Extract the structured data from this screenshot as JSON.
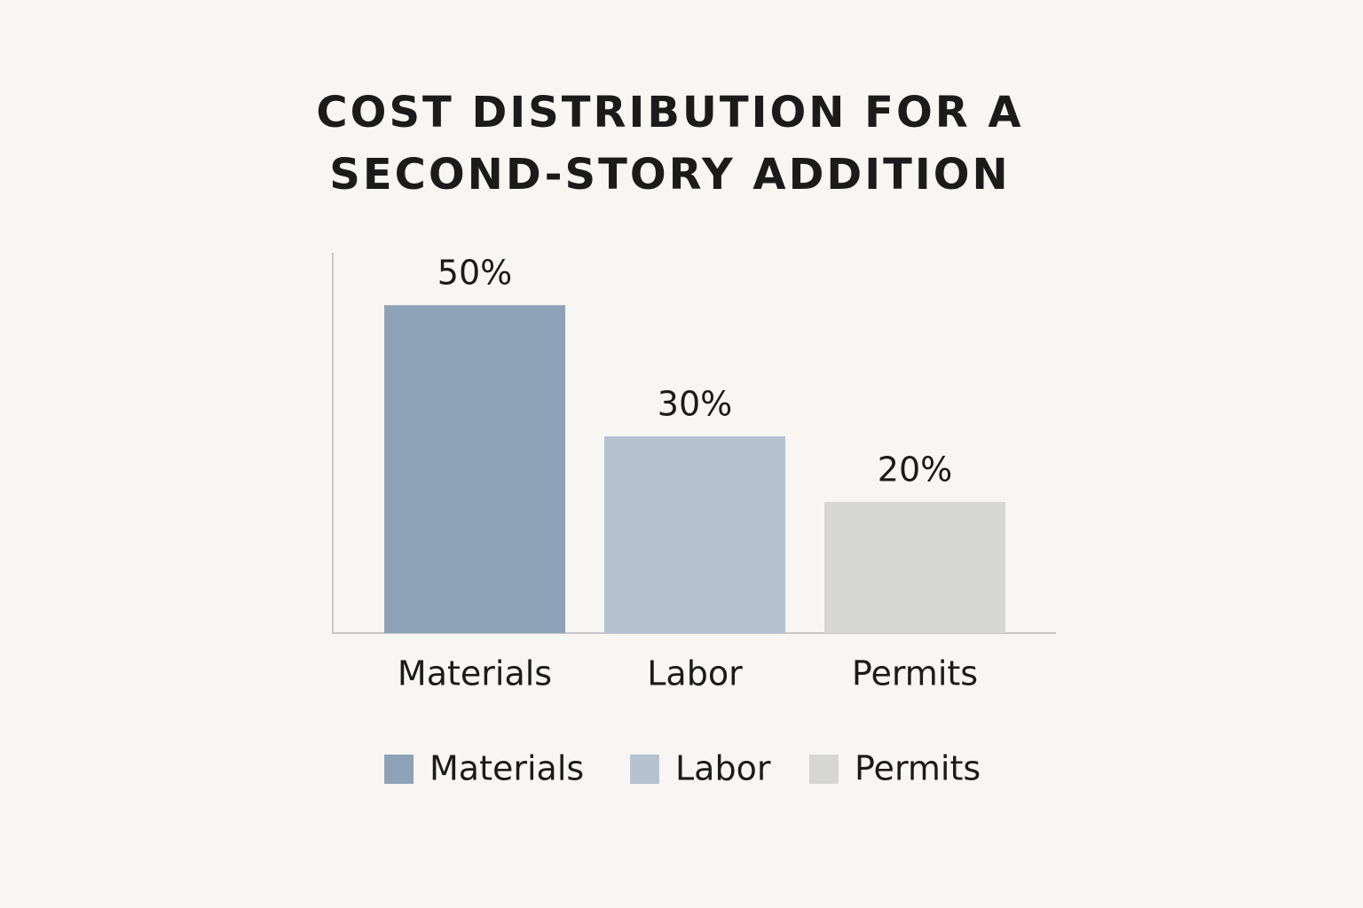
{
  "chart_data": {
    "type": "bar",
    "title": "COST DISTRIBUTION FOR A SECOND-STORY ADDITION",
    "categories": [
      "Materials",
      "Labor",
      "Permits"
    ],
    "values": [
      50,
      30,
      20
    ],
    "value_labels": [
      "50%",
      "30%",
      "20%"
    ],
    "colors": [
      "#8fa3b8",
      "#b6c2d0",
      "#d6d6d3"
    ],
    "ylim": [
      0,
      58
    ],
    "legend": "bottom"
  }
}
